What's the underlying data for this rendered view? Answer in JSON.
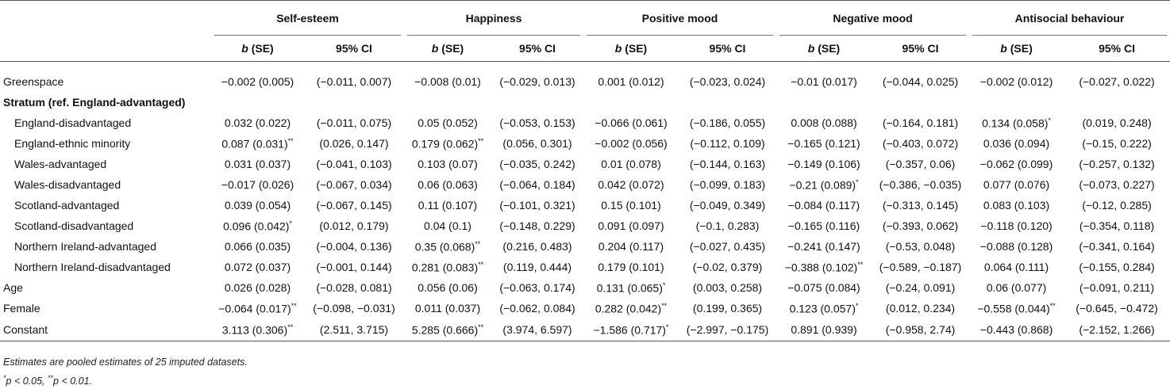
{
  "table": {
    "groups": [
      "Self-esteem",
      "Happiness",
      "Positive mood",
      "Negative mood",
      "Antisocial behaviour"
    ],
    "sub_headers": {
      "b_label": "b",
      "se_label": " (SE)",
      "ci_label": "95% CI"
    },
    "rows": [
      {
        "label": "Greenspace",
        "type": "data",
        "indent": false,
        "cells": [
          "−0.002 (0.005)",
          "(−0.011, 0.007)",
          "−0.008 (0.01)",
          "(−0.029, 0.013)",
          "0.001 (0.012)",
          "(−0.023, 0.024)",
          "−0.01 (0.017)",
          "(−0.044, 0.025)",
          "−0.002 (0.012)",
          "(−0.027, 0.022)"
        ],
        "sigs": [
          "",
          "",
          "",
          "",
          "",
          "",
          "",
          "",
          "",
          ""
        ]
      },
      {
        "label": "Stratum (ref. England-advantaged)",
        "type": "section",
        "indent": false,
        "cells": [],
        "sigs": []
      },
      {
        "label": "England-disadvantaged",
        "type": "data",
        "indent": true,
        "cells": [
          "0.032 (0.022)",
          "(−0.011, 0.075)",
          "0.05 (0.052)",
          "(−0.053, 0.153)",
          "−0.066 (0.061)",
          "(−0.186, 0.055)",
          "0.008 (0.088)",
          "(−0.164, 0.181)",
          "0.134 (0.058)",
          "(0.019, 0.248)"
        ],
        "sigs": [
          "",
          "",
          "",
          "",
          "",
          "",
          "",
          "",
          "*",
          ""
        ]
      },
      {
        "label": "England-ethnic minority",
        "type": "data",
        "indent": true,
        "cells": [
          "0.087 (0.031)",
          "(0.026, 0.147)",
          "0.179 (0.062)",
          "(0.056, 0.301)",
          "−0.002 (0.056)",
          "(−0.112, 0.109)",
          "−0.165 (0.121)",
          "(−0.403, 0.072)",
          "0.036 (0.094)",
          "(−0.15, 0.222)"
        ],
        "sigs": [
          "**",
          "",
          "**",
          "",
          "",
          "",
          "",
          "",
          "",
          ""
        ]
      },
      {
        "label": "Wales-advantaged",
        "type": "data",
        "indent": true,
        "cells": [
          "0.031 (0.037)",
          "(−0.041, 0.103)",
          "0.103 (0.07)",
          "(−0.035, 0.242)",
          "0.01 (0.078)",
          "(−0.144, 0.163)",
          "−0.149 (0.106)",
          "(−0.357, 0.06)",
          "−0.062 (0.099)",
          "(−0.257, 0.132)"
        ],
        "sigs": [
          "",
          "",
          "",
          "",
          "",
          "",
          "",
          "",
          "",
          ""
        ]
      },
      {
        "label": "Wales-disadvantaged",
        "type": "data",
        "indent": true,
        "cells": [
          "−0.017 (0.026)",
          "(−0.067, 0.034)",
          "0.06 (0.063)",
          "(−0.064, 0.184)",
          "0.042 (0.072)",
          "(−0.099, 0.183)",
          "−0.21 (0.089)",
          "(−0.386, −0.035)",
          "0.077 (0.076)",
          "(−0.073, 0.227)"
        ],
        "sigs": [
          "",
          "",
          "",
          "",
          "",
          "",
          "*",
          "",
          "",
          ""
        ]
      },
      {
        "label": "Scotland-advantaged",
        "type": "data",
        "indent": true,
        "cells": [
          "0.039 (0.054)",
          "(−0.067, 0.145)",
          "0.11 (0.107)",
          "(−0.101, 0.321)",
          "0.15 (0.101)",
          "(−0.049, 0.349)",
          "−0.084 (0.117)",
          "(−0.313, 0.145)",
          "0.083 (0.103)",
          "(−0.12, 0.285)"
        ],
        "sigs": [
          "",
          "",
          "",
          "",
          "",
          "",
          "",
          "",
          "",
          ""
        ]
      },
      {
        "label": "Scotland-disadvantaged",
        "type": "data",
        "indent": true,
        "cells": [
          "0.096 (0.042)",
          "(0.012, 0.179)",
          "0.04 (0.1)",
          "(−0.148, 0.229)",
          "0.091 (0.097)",
          "(−0.1, 0.283)",
          "−0.165 (0.116)",
          "(−0.393, 0.062)",
          "−0.118 (0.120)",
          "(−0.354, 0.118)"
        ],
        "sigs": [
          "*",
          "",
          "",
          "",
          "",
          "",
          "",
          "",
          "",
          ""
        ]
      },
      {
        "label": "Northern Ireland-advantaged",
        "type": "data",
        "indent": true,
        "cells": [
          "0.066 (0.035)",
          "(−0.004, 0.136)",
          "0.35 (0.068)",
          "(0.216, 0.483)",
          "0.204 (0.117)",
          "(−0.027, 0.435)",
          "−0.241 (0.147)",
          "(−0.53, 0.048)",
          "−0.088 (0.128)",
          "(−0.341, 0.164)"
        ],
        "sigs": [
          "",
          "",
          "**",
          "",
          "",
          "",
          "",
          "",
          "",
          ""
        ]
      },
      {
        "label": "Northern Ireland-disadvantaged",
        "type": "data",
        "indent": true,
        "cells": [
          "0.072 (0.037)",
          "(−0.001, 0.144)",
          "0.281 (0.083)",
          "(0.119, 0.444)",
          "0.179 (0.101)",
          "(−0.02, 0.379)",
          "−0.388 (0.102)",
          "(−0.589, −0.187)",
          "0.064 (0.111)",
          "(−0.155, 0.284)"
        ],
        "sigs": [
          "",
          "",
          "**",
          "",
          "",
          "",
          "**",
          "",
          "",
          ""
        ]
      },
      {
        "label": "Age",
        "type": "data",
        "indent": false,
        "cells": [
          "0.026 (0.028)",
          "(−0.028, 0.081)",
          "0.056 (0.06)",
          "(−0.063, 0.174)",
          "0.131 (0.065)",
          "(0.003, 0.258)",
          "−0.075 (0.084)",
          "(−0.24, 0.091)",
          "0.06 (0.077)",
          "(−0.091, 0.211)"
        ],
        "sigs": [
          "",
          "",
          "",
          "",
          "*",
          "",
          "",
          "",
          "",
          ""
        ]
      },
      {
        "label": "Female",
        "type": "data",
        "indent": false,
        "cells": [
          "−0.064 (0.017)",
          "(−0.098, −0.031)",
          "0.011 (0.037)",
          "(−0.062, 0.084)",
          "0.282 (0.042)",
          "(0.199, 0.365)",
          "0.123 (0.057)",
          "(0.012, 0.234)",
          "−0.558 (0.044)",
          "(−0.645, −0.472)"
        ],
        "sigs": [
          "**",
          "",
          "",
          "",
          "**",
          "",
          "*",
          "",
          "**",
          ""
        ]
      },
      {
        "label": "Constant",
        "type": "data",
        "indent": false,
        "cells": [
          "3.113 (0.306)",
          "(2.511, 3.715)",
          "5.285 (0.666)",
          "(3.974, 6.597)",
          "−1.586 (0.717)",
          "(−2.997, −0.175)",
          "0.891 (0.939)",
          "(−0.958, 2.74)",
          "−0.443 (0.868)",
          "(−2.152, 1.266)"
        ],
        "sigs": [
          "**",
          "",
          "**",
          "",
          "*",
          "",
          "",
          "",
          "",
          ""
        ]
      }
    ]
  },
  "notes": {
    "line1": "Estimates are pooled estimates of 25 imputed datasets.",
    "sig1_mark": "*",
    "sig1_text": "p < 0.05, ",
    "sig2_mark": "**",
    "sig2_text": "p < 0.01."
  }
}
